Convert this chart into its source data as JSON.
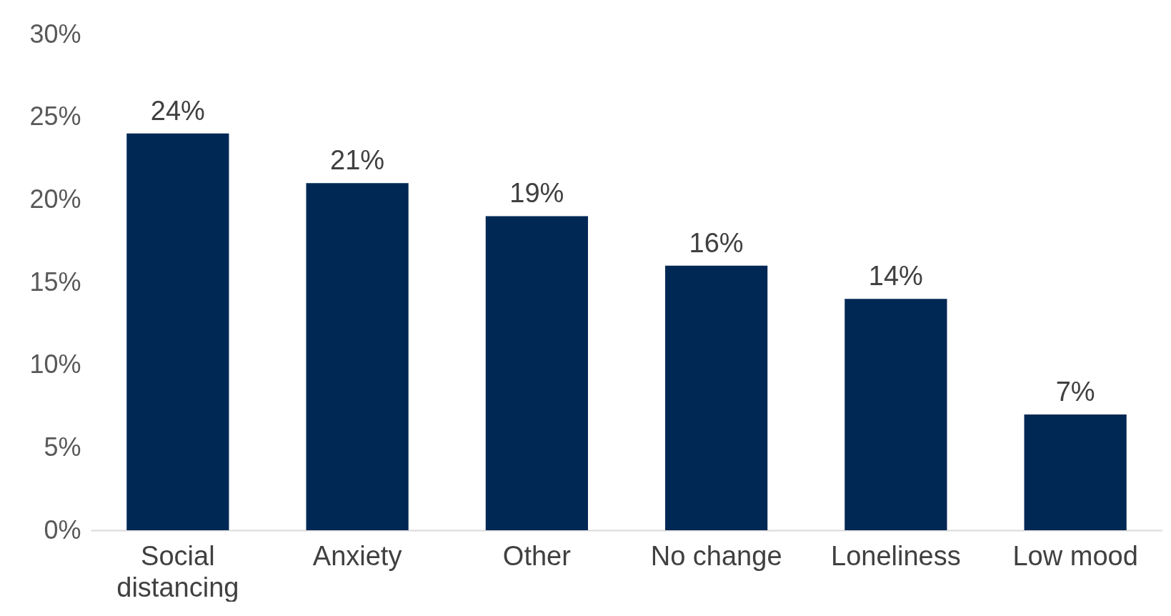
{
  "chart_data": {
    "type": "bar",
    "categories": [
      "Social distancing",
      "Anxiety",
      "Other",
      "No change",
      "Loneliness",
      "Low mood"
    ],
    "values": [
      24,
      21,
      19,
      16,
      14,
      7
    ],
    "value_labels": [
      "24%",
      "21%",
      "19%",
      "16%",
      "14%",
      "7%"
    ],
    "color": "#002855",
    "ylim": [
      0,
      30
    ],
    "yticks": [
      {
        "value": 0,
        "label": "0%"
      },
      {
        "value": 5,
        "label": "5%"
      },
      {
        "value": 10,
        "label": "10%"
      },
      {
        "value": 15,
        "label": "15%"
      },
      {
        "value": 20,
        "label": "20%"
      },
      {
        "value": 25,
        "label": "25%"
      },
      {
        "value": 30,
        "label": "30%"
      }
    ],
    "grid": false
  }
}
